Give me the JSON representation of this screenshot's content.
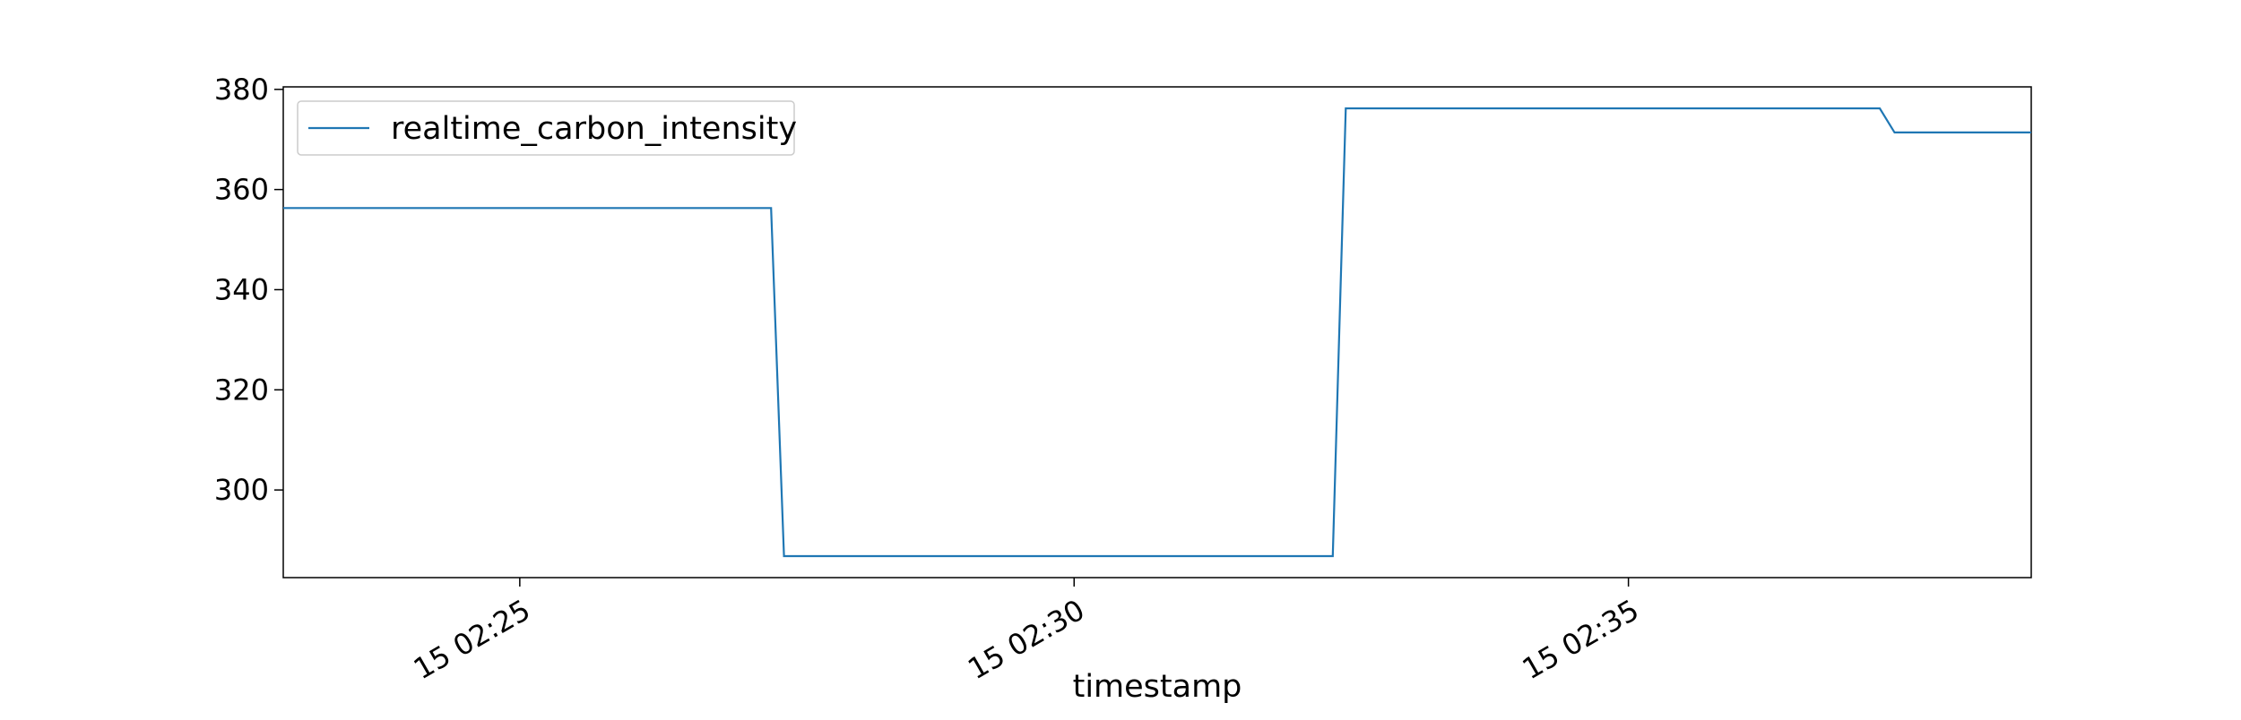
{
  "chart_data": {
    "type": "line",
    "title": "",
    "xlabel": "timestamp",
    "ylabel": "",
    "x_type": "time",
    "x": [
      "02:22:52",
      "02:27:16",
      "02:27:23",
      "02:32:20",
      "02:32:27",
      "02:37:16",
      "02:37:24",
      "02:38:38"
    ],
    "xlim": [
      "02:22:52",
      "02:38:38"
    ],
    "x_tick_labels": [
      "15 02:25",
      "15 02:30",
      "15 02:35"
    ],
    "x_tick_values": [
      "02:25:00",
      "02:30:00",
      "02:35:00"
    ],
    "ylim": [
      282.5,
      380.5
    ],
    "y_ticks": [
      300,
      320,
      340,
      360,
      380
    ],
    "series": [
      {
        "name": "realtime_carbon_intensity",
        "color": "#1f77b4",
        "values": [
          356.3,
          356.3,
          286.8,
          286.8,
          376.2,
          376.2,
          371.4,
          371.4
        ]
      }
    ],
    "legend": {
      "position": "top-left",
      "entries": [
        "realtime_carbon_intensity"
      ]
    },
    "grid": false
  }
}
